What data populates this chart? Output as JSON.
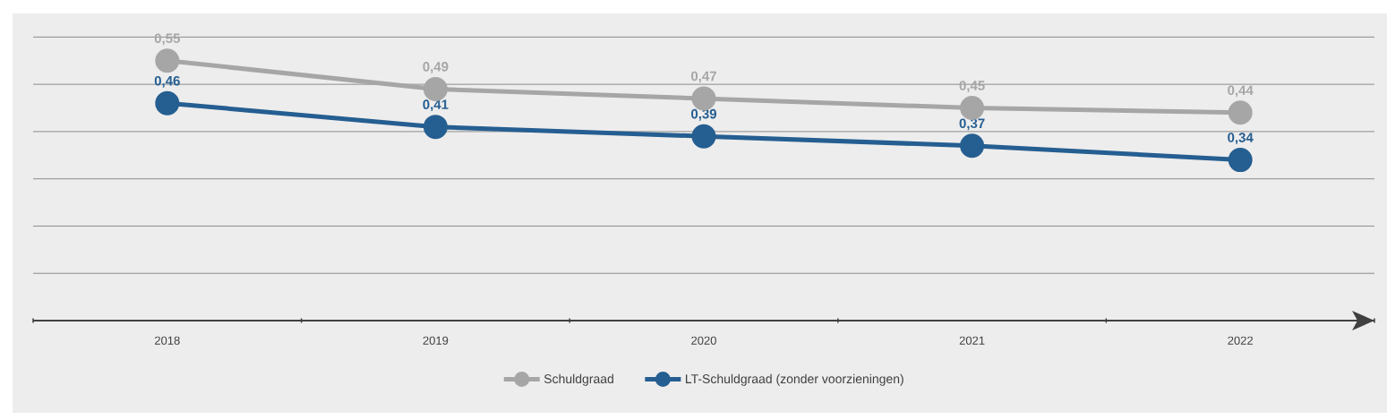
{
  "chart_data": {
    "type": "line",
    "categories": [
      "2018",
      "2019",
      "2020",
      "2021",
      "2022"
    ],
    "series": [
      {
        "name": "Schuldgraad",
        "color": "#a6a6a6",
        "values": [
          0.55,
          0.49,
          0.47,
          0.45,
          0.44
        ],
        "value_labels": [
          "0,55",
          "0,49",
          "0,47",
          "0,45",
          "0,44"
        ]
      },
      {
        "name": "LT-Schuldgraad (zonder voorzieningen)",
        "color": "#255e91",
        "values": [
          0.46,
          0.41,
          0.39,
          0.37,
          0.34
        ],
        "value_labels": [
          "0,46",
          "0,41",
          "0,39",
          "0,37",
          "0,34"
        ]
      }
    ],
    "ylim": [
      0,
      0.65
    ],
    "grid": "y",
    "legend": "bottom",
    "marker": "circle",
    "line_style": "solid",
    "tick_labels": "x"
  }
}
